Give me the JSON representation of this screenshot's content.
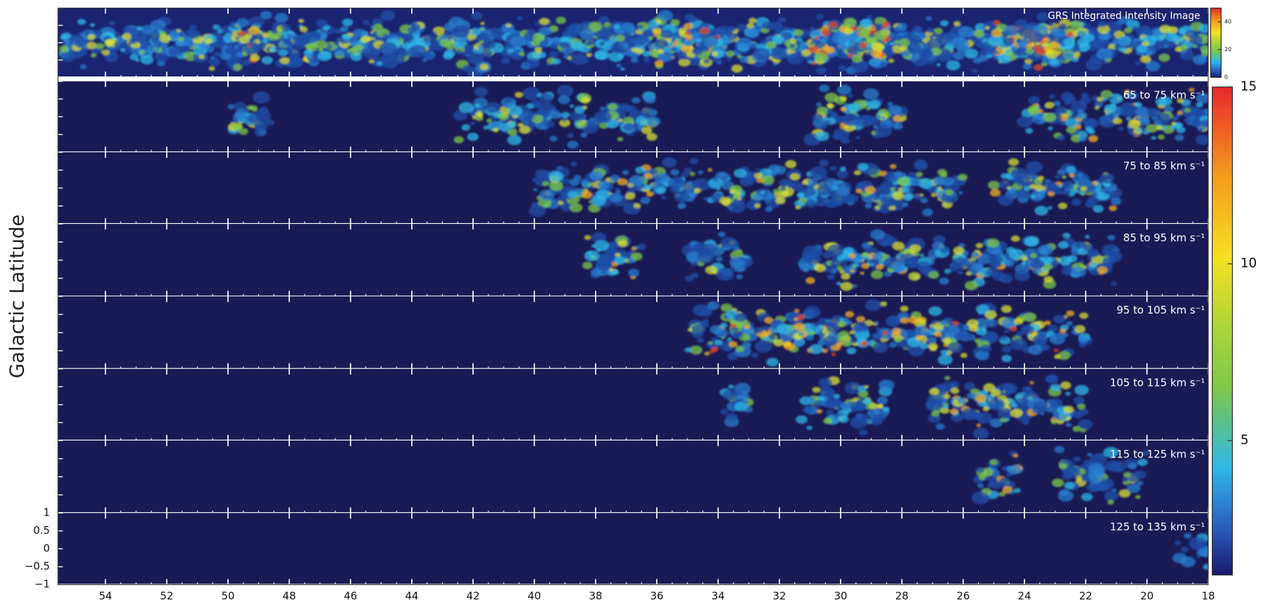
{
  "chart_data": {
    "type": "image-panels",
    "title": "GRS Integrated Intensity Image",
    "y_label": "Galactic Latitude",
    "xlim": [
      55.55,
      18
    ],
    "xticks": [
      54,
      52,
      50,
      48,
      46,
      44,
      42,
      40,
      38,
      36,
      34,
      32,
      30,
      28,
      26,
      24,
      22,
      20,
      18
    ],
    "ylim": [
      -1,
      1
    ],
    "yticks": [
      1,
      0.5,
      0,
      {
        "value": -0.5,
        "label": "−0.5"
      },
      {
        "value": -1,
        "label": "−1"
      }
    ],
    "panels": [
      "65 to 75 km s⁻¹",
      "75 to 85 km s⁻¹",
      "85 to 95 km s⁻¹",
      "95 to 105 km s⁻¹",
      "105 to 115 km s⁻¹",
      "115 to 125 km s⁻¹",
      "125 to 135 km s⁻¹"
    ],
    "colorbar": {
      "lim": [
        1.2,
        15
      ],
      "ticks": [
        5,
        10,
        15
      ]
    },
    "colorbar_top": {
      "lim": [
        0,
        50
      ],
      "ticks": [
        0,
        20,
        40
      ]
    }
  }
}
